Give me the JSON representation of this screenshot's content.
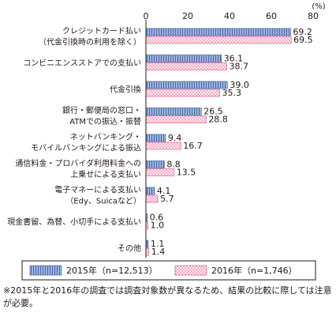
{
  "chart_data": {
    "type": "bar",
    "orientation": "horizontal",
    "unit": "(%)",
    "xlim": [
      0,
      80
    ],
    "xticks": [
      "0",
      "20",
      "40",
      "60",
      "80"
    ],
    "categories": [
      [
        "クレジットカード払い",
        "（代金引換時の利用を除く）"
      ],
      [
        "コンビニエンスストアでの支払い"
      ],
      [
        "代金引換"
      ],
      [
        "銀行・郵便局の窓口・",
        "ATMでの振込・振替"
      ],
      [
        "ネットバンキング・",
        "モバイルバンキングによる振込"
      ],
      [
        "通信料金・プロバイダ利用料金への",
        "上乗せによる支払い"
      ],
      [
        "電子マネーによる支払い",
        "（Edy、Suicaなど）"
      ],
      [
        "現金書留、為替、小切手による支払い"
      ],
      [
        "その他"
      ]
    ],
    "series": [
      {
        "name": "2015年（n=12,513）",
        "values": [
          69.2,
          36.1,
          39.0,
          26.5,
          9.4,
          8.8,
          4.1,
          0.6,
          1.1
        ],
        "labels": [
          "69.2",
          "36.1",
          "39.0",
          "26.5",
          "9.4",
          "8.8",
          "4.1",
          "0.6",
          "1.1"
        ]
      },
      {
        "name": "2016年（n=1,746）",
        "values": [
          69.5,
          38.7,
          35.3,
          28.8,
          16.7,
          13.5,
          5.7,
          1.0,
          1.4
        ],
        "labels": [
          "69.5",
          "38.7",
          "35.3",
          "28.8",
          "16.7",
          "13.5",
          "5.7",
          "1.0",
          "1.4"
        ]
      }
    ],
    "legend_position": "bottom",
    "grid": false
  },
  "note": "※2015年と2016年の調査では調査対象数が異なるため、結果の比較に際しては注意が必要。",
  "colors": {
    "series_2015": "#9db4dd",
    "series_2015_stripe": "#4a69a8",
    "series_2016": "#ffe6ef",
    "series_2016_dot": "#e0608c",
    "axis": "#231815"
  }
}
